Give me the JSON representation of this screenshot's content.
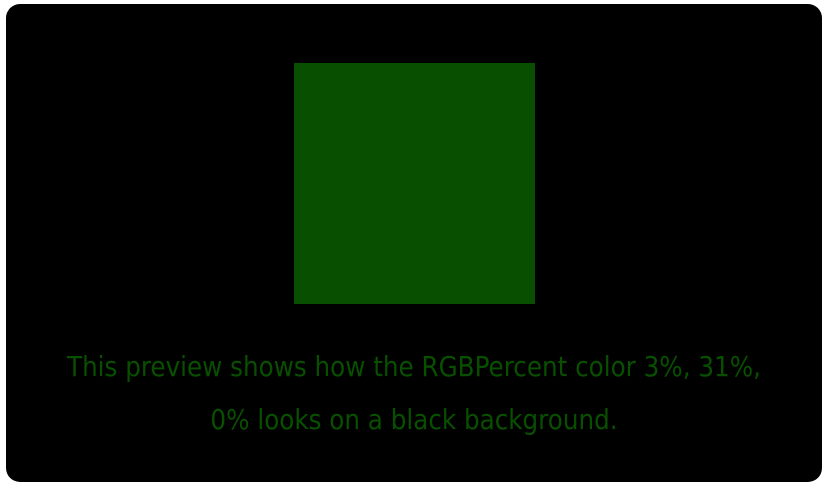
{
  "preview": {
    "background_color": "#000000",
    "swatch_color": "#084f00",
    "caption": "This preview shows how the RGBPercent color 3%, 31%, 0% looks on a black background."
  }
}
